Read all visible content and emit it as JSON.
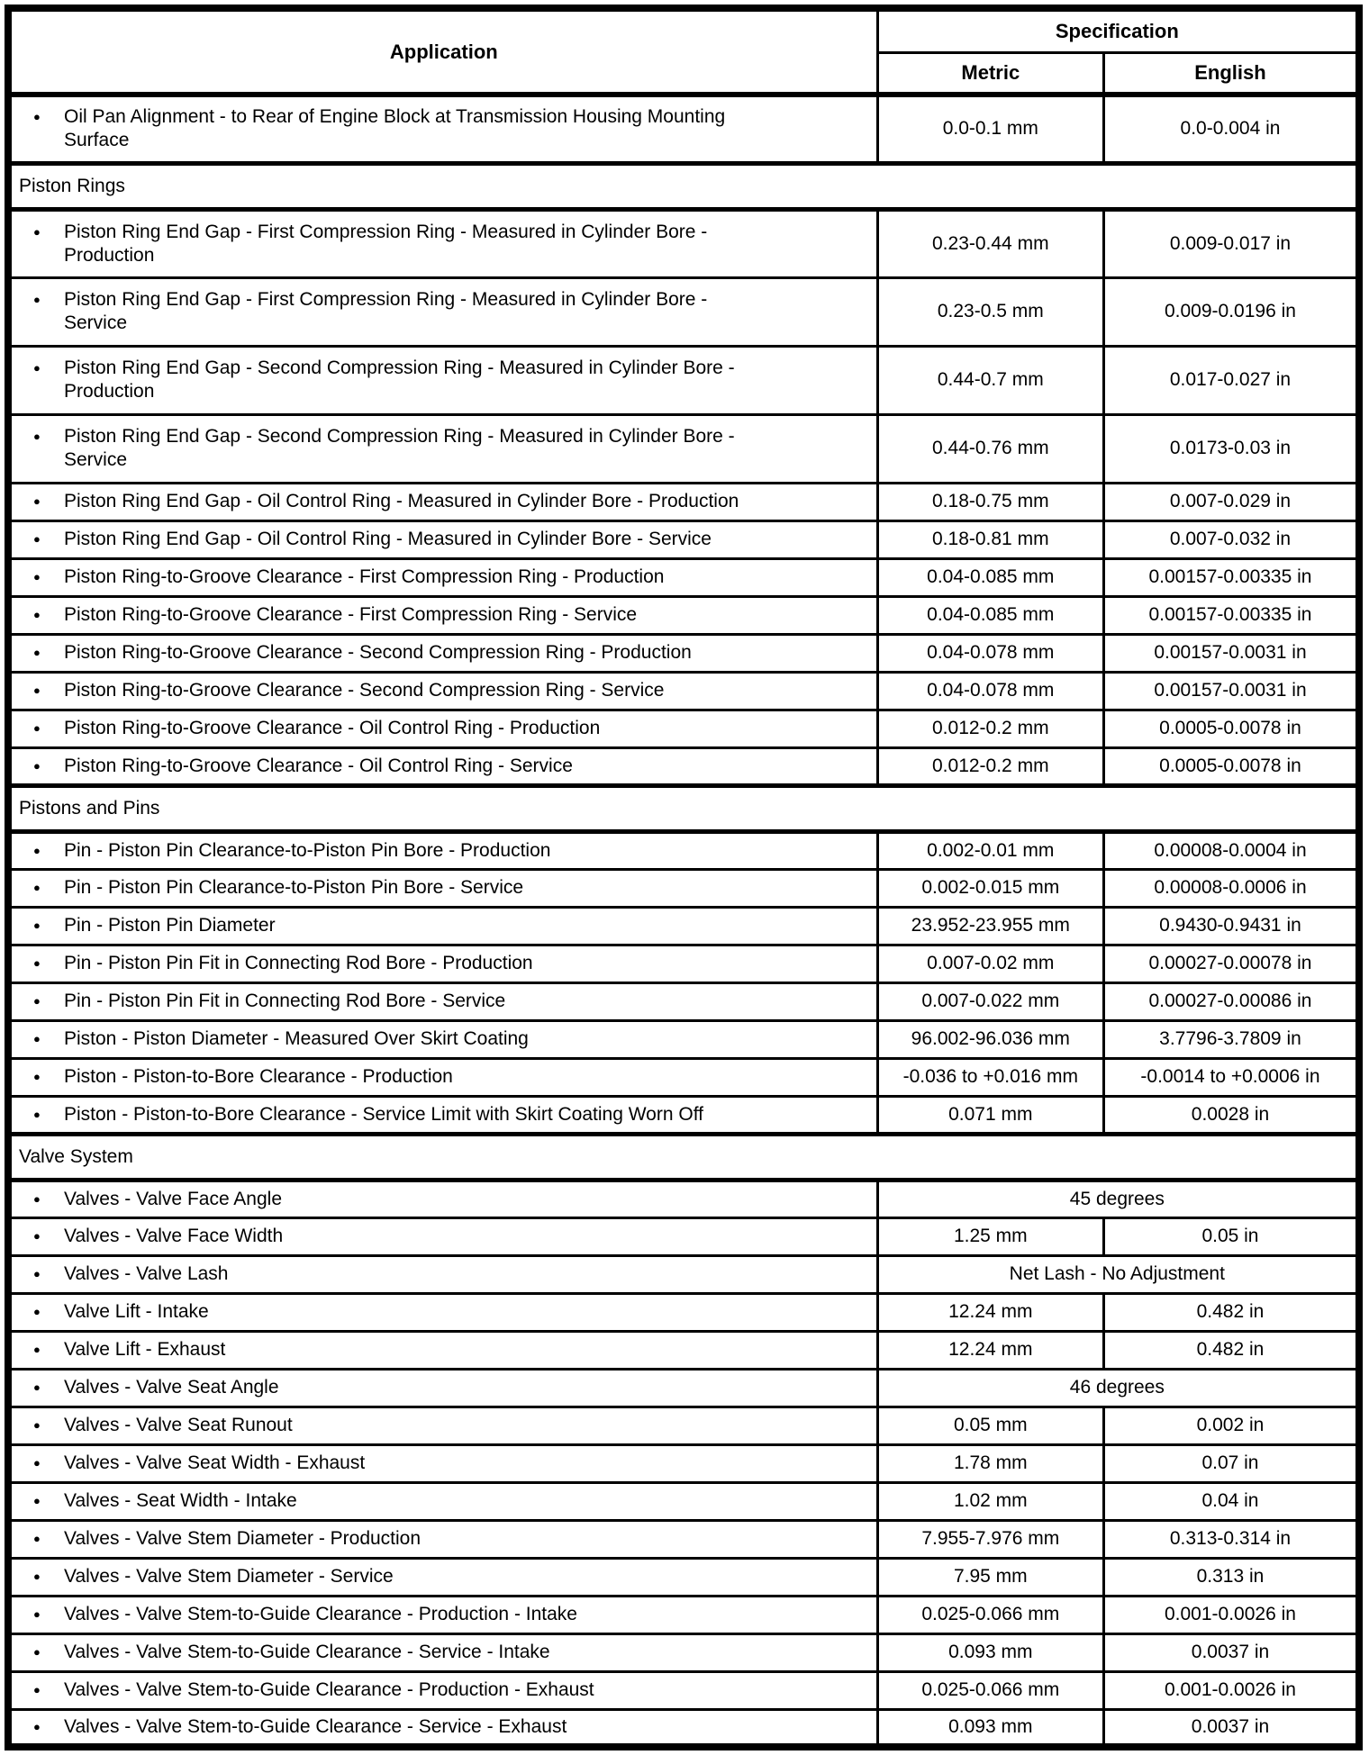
{
  "table": {
    "header": {
      "application": "Application",
      "specification": "Specification",
      "metric": "Metric",
      "english": "English"
    },
    "bullet": "●",
    "colors": {
      "border": "#000000",
      "text": "#000000",
      "background": "#ffffff"
    },
    "rows": [
      {
        "type": "spec2",
        "app": "Oil Pan Alignment - to Rear of Engine Block at Transmission Housing Mounting\nSurface",
        "metric": "0.0-0.1 mm",
        "english": "0.0-0.004 in"
      },
      {
        "type": "section",
        "label": "Piston Rings"
      },
      {
        "type": "spec2",
        "app": "Piston Ring End Gap - First Compression Ring - Measured in Cylinder Bore -\nProduction",
        "metric": "0.23-0.44 mm",
        "english": "0.009-0.017 in"
      },
      {
        "type": "spec2",
        "app": "Piston Ring End Gap - First Compression Ring - Measured in Cylinder Bore -\nService",
        "metric": "0.23-0.5 mm",
        "english": "0.009-0.0196 in"
      },
      {
        "type": "spec2",
        "app": "Piston Ring End Gap - Second Compression Ring - Measured in Cylinder Bore -\nProduction",
        "metric": "0.44-0.7 mm",
        "english": "0.017-0.027 in"
      },
      {
        "type": "spec2",
        "app": "Piston Ring End Gap - Second Compression Ring - Measured in Cylinder Bore -\nService",
        "metric": "0.44-0.76 mm",
        "english": "0.0173-0.03 in"
      },
      {
        "type": "spec",
        "app": "Piston Ring End Gap - Oil Control Ring - Measured in Cylinder Bore - Production",
        "metric": "0.18-0.75 mm",
        "english": "0.007-0.029 in"
      },
      {
        "type": "spec",
        "app": "Piston Ring End Gap - Oil Control Ring - Measured in Cylinder Bore - Service",
        "metric": "0.18-0.81 mm",
        "english": "0.007-0.032 in"
      },
      {
        "type": "spec",
        "app": "Piston Ring-to-Groove Clearance - First Compression Ring - Production",
        "metric": "0.04-0.085 mm",
        "english": "0.00157-0.00335 in"
      },
      {
        "type": "spec",
        "app": "Piston Ring-to-Groove Clearance - First Compression Ring - Service",
        "metric": "0.04-0.085 mm",
        "english": "0.00157-0.00335 in"
      },
      {
        "type": "spec",
        "app": "Piston Ring-to-Groove Clearance - Second Compression Ring - Production",
        "metric": "0.04-0.078 mm",
        "english": "0.00157-0.0031 in"
      },
      {
        "type": "spec",
        "app": "Piston Ring-to-Groove Clearance - Second Compression Ring - Service",
        "metric": "0.04-0.078 mm",
        "english": "0.00157-0.0031 in"
      },
      {
        "type": "spec",
        "app": "Piston Ring-to-Groove Clearance - Oil Control Ring - Production",
        "metric": "0.012-0.2 mm",
        "english": "0.0005-0.0078 in"
      },
      {
        "type": "spec",
        "app": "Piston Ring-to-Groove Clearance - Oil Control Ring - Service",
        "metric": "0.012-0.2 mm",
        "english": "0.0005-0.0078 in"
      },
      {
        "type": "section",
        "label": "Pistons and Pins"
      },
      {
        "type": "spec",
        "app": "Pin - Piston Pin Clearance-to-Piston Pin Bore - Production",
        "metric": "0.002-0.01 mm",
        "english": "0.00008-0.0004 in"
      },
      {
        "type": "spec",
        "app": "Pin - Piston Pin Clearance-to-Piston Pin Bore - Service",
        "metric": "0.002-0.015 mm",
        "english": "0.00008-0.0006 in"
      },
      {
        "type": "spec",
        "app": "Pin - Piston Pin Diameter",
        "metric": "23.952-23.955 mm",
        "english": "0.9430-0.9431 in"
      },
      {
        "type": "spec",
        "app": "Pin - Piston Pin Fit in Connecting Rod Bore - Production",
        "metric": "0.007-0.02 mm",
        "english": "0.00027-0.00078 in"
      },
      {
        "type": "spec",
        "app": "Pin - Piston Pin Fit in Connecting Rod Bore - Service",
        "metric": "0.007-0.022 mm",
        "english": "0.00027-0.00086 in"
      },
      {
        "type": "spec",
        "app": "Piston - Piston Diameter - Measured Over Skirt Coating",
        "metric": "96.002-96.036 mm",
        "english": "3.7796-3.7809 in"
      },
      {
        "type": "spec",
        "app": "Piston - Piston-to-Bore Clearance - Production",
        "metric": "-0.036 to +0.016 mm",
        "english": "-0.0014 to +0.0006 in"
      },
      {
        "type": "spec",
        "app": "Piston - Piston-to-Bore Clearance - Service Limit with Skirt Coating Worn Off",
        "metric": "0.071 mm",
        "english": "0.0028 in"
      },
      {
        "type": "section",
        "label": "Valve System"
      },
      {
        "type": "span",
        "app": "Valves - Valve Face Angle",
        "value": "45 degrees"
      },
      {
        "type": "spec",
        "app": "Valves - Valve Face Width",
        "metric": "1.25 mm",
        "english": "0.05 in"
      },
      {
        "type": "span",
        "app": "Valves - Valve Lash",
        "value": "Net Lash - No Adjustment"
      },
      {
        "type": "spec",
        "app": "Valve Lift - Intake",
        "metric": "12.24 mm",
        "english": "0.482 in"
      },
      {
        "type": "spec",
        "app": "Valve Lift - Exhaust",
        "metric": "12.24 mm",
        "english": "0.482 in"
      },
      {
        "type": "span",
        "app": "Valves - Valve Seat Angle",
        "value": "46 degrees"
      },
      {
        "type": "spec",
        "app": "Valves - Valve Seat Runout",
        "metric": "0.05 mm",
        "english": "0.002 in"
      },
      {
        "type": "spec",
        "app": "Valves - Valve Seat Width - Exhaust",
        "metric": "1.78 mm",
        "english": "0.07 in"
      },
      {
        "type": "spec",
        "app": "Valves - Seat Width - Intake",
        "metric": "1.02 mm",
        "english": "0.04 in"
      },
      {
        "type": "spec",
        "app": "Valves - Valve Stem Diameter - Production",
        "metric": "7.955-7.976 mm",
        "english": "0.313-0.314 in"
      },
      {
        "type": "spec",
        "app": "Valves - Valve Stem Diameter - Service",
        "metric": "7.95 mm",
        "english": "0.313 in"
      },
      {
        "type": "spec",
        "app": "Valves - Valve Stem-to-Guide Clearance - Production - Intake",
        "metric": "0.025-0.066 mm",
        "english": "0.001-0.0026 in"
      },
      {
        "type": "spec",
        "app": "Valves - Valve Stem-to-Guide Clearance - Service - Intake",
        "metric": "0.093 mm",
        "english": "0.0037 in"
      },
      {
        "type": "spec",
        "app": "Valves - Valve Stem-to-Guide Clearance - Production - Exhaust",
        "metric": "0.025-0.066 mm",
        "english": "0.001-0.0026 in"
      },
      {
        "type": "spec",
        "app": "Valves - Valve Stem-to-Guide Clearance - Service - Exhaust",
        "metric": "0.093 mm",
        "english": "0.0037 in"
      }
    ]
  }
}
